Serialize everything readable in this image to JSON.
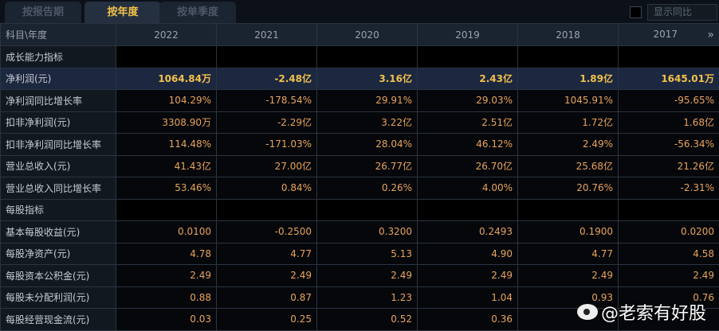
{
  "tabs": [
    {
      "label": "按报告期"
    },
    {
      "label": "按年度",
      "active": true
    },
    {
      "label": "按单季度"
    }
  ],
  "show_yoy_label": "显示同比",
  "header": {
    "label": "科目\\年度",
    "years": [
      "2022",
      "2021",
      "2020",
      "2019",
      "2018",
      "2017"
    ],
    "more_icon": "»"
  },
  "rows": [
    {
      "label": "成长能力指标",
      "section": true,
      "values": [
        "",
        "",
        "",
        "",
        "",
        ""
      ]
    },
    {
      "label": "净利润(元)",
      "highlight": true,
      "values": [
        "1064.84万",
        "-2.48亿",
        "3.16亿",
        "2.43亿",
        "1.89亿",
        "1645.01万"
      ]
    },
    {
      "label": "净利润同比增长率",
      "values": [
        "104.29%",
        "-178.54%",
        "29.91%",
        "29.03%",
        "1045.91%",
        "-95.65%"
      ]
    },
    {
      "label": "扣非净利润(元)",
      "values": [
        "3308.90万",
        "-2.29亿",
        "3.22亿",
        "2.51亿",
        "1.72亿",
        "1.68亿"
      ]
    },
    {
      "label": "扣非净利润同比增长率",
      "values": [
        "114.48%",
        "-171.03%",
        "28.04%",
        "46.12%",
        "2.49%",
        "-56.34%"
      ]
    },
    {
      "label": "营业总收入(元)",
      "values": [
        "41.43亿",
        "27.00亿",
        "26.77亿",
        "26.70亿",
        "25.68亿",
        "21.26亿"
      ]
    },
    {
      "label": "营业总收入同比增长率",
      "values": [
        "53.46%",
        "0.84%",
        "0.26%",
        "4.00%",
        "20.76%",
        "-2.31%"
      ]
    },
    {
      "label": "每股指标",
      "section": true,
      "values": [
        "",
        "",
        "",
        "",
        "",
        ""
      ]
    },
    {
      "label": "基本每股收益(元)",
      "values": [
        "0.0100",
        "-0.2500",
        "0.3200",
        "0.2493",
        "0.1900",
        "0.0200"
      ]
    },
    {
      "label": "每股净资产(元)",
      "values": [
        "4.78",
        "4.77",
        "5.13",
        "4.90",
        "4.77",
        "4.58"
      ]
    },
    {
      "label": "每股资本公积金(元)",
      "values": [
        "2.49",
        "2.49",
        "2.49",
        "2.49",
        "2.49",
        "2.49"
      ]
    },
    {
      "label": "每股未分配利润(元)",
      "values": [
        "0.88",
        "0.87",
        "1.23",
        "1.04",
        "0.93",
        "0.76"
      ]
    },
    {
      "label": "每股经营现金流(元)",
      "values": [
        "0.03",
        "0.25",
        "0.52",
        "0.36",
        "",
        ""
      ]
    }
  ],
  "watermark": "@老索有好股"
}
